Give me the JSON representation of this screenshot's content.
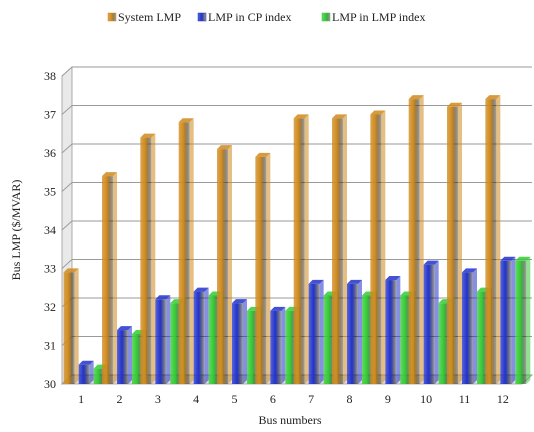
{
  "chart_data": {
    "type": "bar",
    "title": "",
    "xlabel": "Bus numbers",
    "ylabel": "Bus LMP ($/MVAR)",
    "ylim": [
      30,
      38
    ],
    "yticks": [
      30,
      31,
      32,
      33,
      34,
      35,
      36,
      37,
      38
    ],
    "grid": true,
    "legend_position": "top",
    "categories": [
      "1",
      "2",
      "3",
      "4",
      "5",
      "6",
      "7",
      "8",
      "9",
      "10",
      "11",
      "12"
    ],
    "series": [
      {
        "name": "System LMP",
        "color": "#D08A1C",
        "values": [
          32.9,
          35.4,
          36.4,
          36.8,
          36.1,
          35.9,
          36.9,
          36.9,
          37.0,
          37.4,
          37.2,
          37.4
        ]
      },
      {
        "name": "LMP in CP index",
        "color": "#2233CC",
        "values": [
          30.5,
          31.4,
          32.2,
          32.4,
          32.1,
          31.9,
          32.6,
          32.6,
          32.7,
          33.1,
          32.9,
          33.2
        ]
      },
      {
        "name": "LMP in LMP index",
        "color": "#33CC33",
        "values": [
          30.4,
          31.3,
          32.1,
          32.3,
          31.9,
          31.9,
          32.3,
          32.3,
          32.3,
          32.1,
          32.4,
          33.2
        ]
      }
    ]
  }
}
